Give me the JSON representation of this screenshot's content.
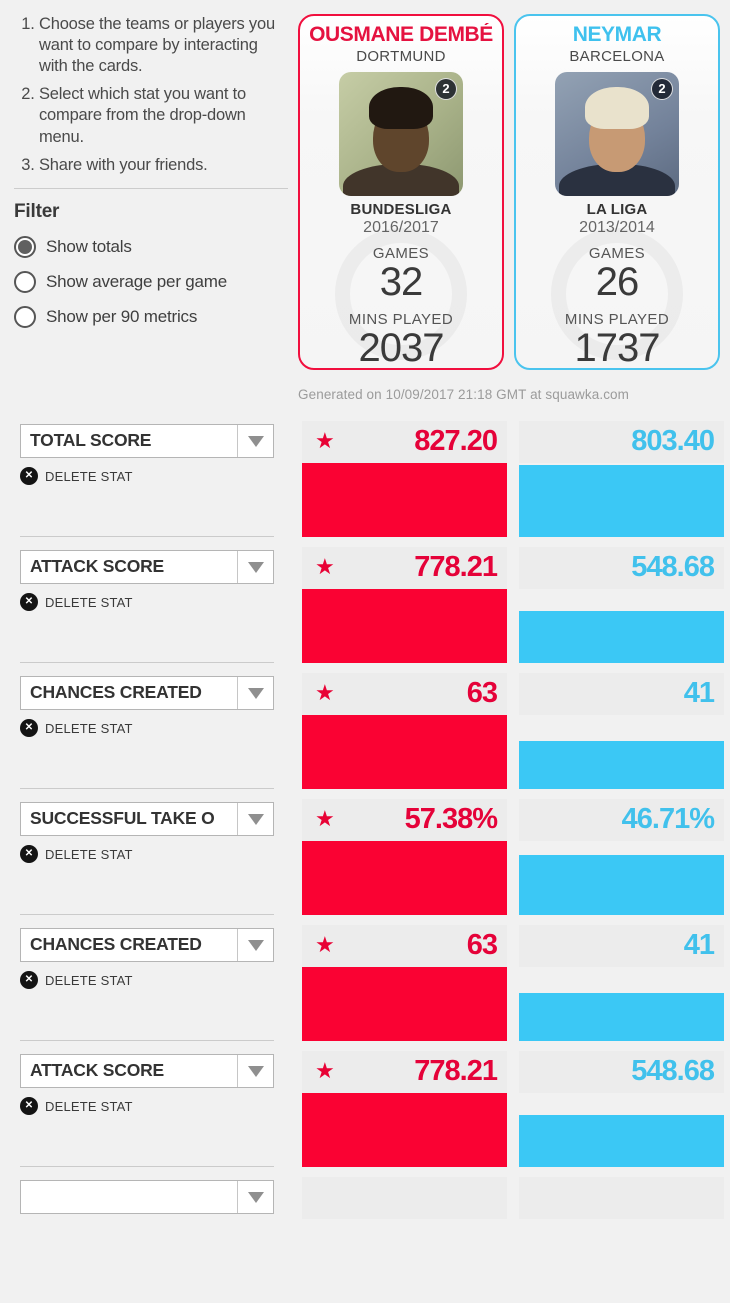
{
  "sidebar": {
    "instructions": [
      "Choose the teams or players you want to compare by interacting with the cards.",
      "Select which stat you want to compare from the drop-down menu.",
      "Share with your friends."
    ],
    "filter": {
      "title": "Filter",
      "options": [
        {
          "label": "Show totals",
          "selected": true
        },
        {
          "label": "Show average per game",
          "selected": false
        },
        {
          "label": "Show per 90 metrics",
          "selected": false
        }
      ]
    }
  },
  "players": [
    {
      "name": "OUSMANE DEMBÉ",
      "team": "DORTMUND",
      "league": "BUNDESLIGA",
      "season": "2016/2017",
      "games_label": "GAMES",
      "games": "32",
      "mins_label": "MINS PLAYED",
      "mins": "2037",
      "accent": "#f10f3e"
    },
    {
      "name": "NEYMAR",
      "team": "BARCELONA",
      "league": "LA LIGA",
      "season": "2013/2014",
      "games_label": "GAMES",
      "games": "26",
      "mins_label": "MINS PLAYED",
      "mins": "1737",
      "accent": "#4ac4ee"
    }
  ],
  "watermark_glyph": "2",
  "generated_note": "Generated on 10/09/2017 21:18 GMT at squawka.com",
  "stats": {
    "delete_label": "DELETE STAT",
    "rows": [
      {
        "stat": "TOTAL SCORE",
        "left_value": "827.20",
        "right_value": "803.40",
        "winner": "left",
        "left_pct": 100,
        "right_pct": 97.1
      },
      {
        "stat": "ATTACK SCORE",
        "left_value": "778.21",
        "right_value": "548.68",
        "winner": "left",
        "left_pct": 100,
        "right_pct": 70.5
      },
      {
        "stat": "CHANCES CREATED",
        "left_value": "63",
        "right_value": "41",
        "winner": "left",
        "left_pct": 100,
        "right_pct": 65.1
      },
      {
        "stat": "SUCCESSFUL TAKE O",
        "left_value": "57.38%",
        "right_value": "46.71%",
        "winner": "left",
        "left_pct": 100,
        "right_pct": 81.4
      },
      {
        "stat": "CHANCES CREATED",
        "left_value": "63",
        "right_value": "41",
        "winner": "left",
        "left_pct": 100,
        "right_pct": 65.1
      },
      {
        "stat": "ATTACK SCORE",
        "left_value": "778.21",
        "right_value": "548.68",
        "winner": "left",
        "left_pct": 100,
        "right_pct": 70.5
      }
    ]
  },
  "colors": {
    "red_bar": "#fa0233",
    "red_text": "#e50239",
    "blue_bar": "#3bc8f5",
    "blue_text": "#41c1ec",
    "strip_bg": "#ececec"
  }
}
